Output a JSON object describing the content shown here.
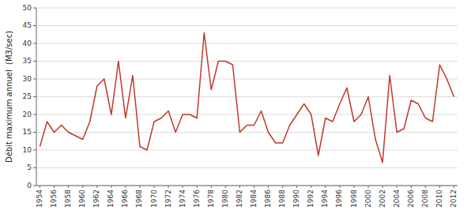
{
  "chart_data": {
    "type": "line",
    "y_label": "Débit maximum annuel  (M3/sec)",
    "x": [
      1954,
      1955,
      1956,
      1957,
      1958,
      1959,
      1960,
      1961,
      1962,
      1963,
      1964,
      1965,
      1966,
      1967,
      1968,
      1969,
      1970,
      1971,
      1972,
      1973,
      1974,
      1975,
      1976,
      1977,
      1978,
      1979,
      1980,
      1981,
      1982,
      1983,
      1984,
      1985,
      1986,
      1987,
      1988,
      1989,
      1990,
      1991,
      1992,
      1993,
      1994,
      1995,
      1996,
      1997,
      1998,
      1999,
      2000,
      2001,
      2002,
      2003,
      2004,
      2005,
      2006,
      2007,
      2008,
      2009,
      2010,
      2011,
      2012
    ],
    "values": [
      11,
      18,
      15,
      17,
      15,
      14,
      13,
      18,
      28,
      30,
      20,
      35,
      19,
      31,
      11,
      10,
      18,
      19,
      21,
      15,
      20,
      20,
      19,
      43,
      27,
      35,
      35,
      34,
      15,
      17,
      17,
      21,
      15,
      12,
      12,
      17,
      20,
      23,
      20,
      8.5,
      19,
      18,
      23,
      27.5,
      18,
      20,
      25,
      13,
      6.5,
      31,
      15,
      16,
      24,
      23,
      19,
      18,
      34,
      30,
      25
    ],
    "color": "#c0392b",
    "xlim": [
      1953.5,
      2012.5
    ],
    "xticks": [
      1954,
      1956,
      1958,
      1960,
      1962,
      1964,
      1966,
      1968,
      1970,
      1972,
      1974,
      1976,
      1978,
      1980,
      1982,
      1984,
      1986,
      1988,
      1990,
      1992,
      1994,
      1996,
      1998,
      2000,
      2002,
      2004,
      2006,
      2008,
      2010,
      2012
    ],
    "ylim": [
      0,
      50
    ],
    "yticks": [
      0,
      5,
      10,
      15,
      20,
      25,
      30,
      35,
      40,
      45,
      50
    ],
    "grid": true
  }
}
